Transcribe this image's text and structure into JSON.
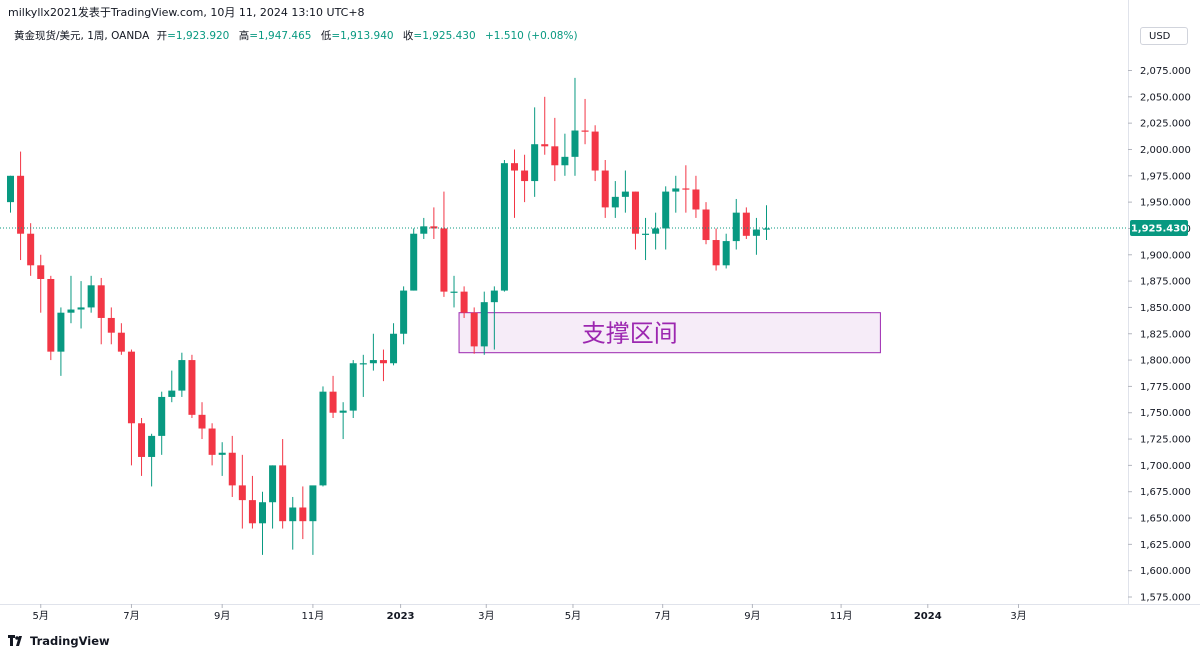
{
  "header": {
    "publish_text": "milkyllx2021发表于TradingView.com, 10月 11, 2024 13:10 UTC+8"
  },
  "legend": {
    "symbol": "黄金现货/美元, 1周, OANDA",
    "open_label": "开",
    "open_value": "=1,923.920",
    "high_label": "高",
    "high_value": "=1,947.465",
    "low_label": "低",
    "low_value": "=1,913.940",
    "close_label": "收",
    "close_value": "=1,925.430",
    "change": "+1.510 (+0.08%)"
  },
  "currency_button": "USD",
  "footer": {
    "brand": "TradingView"
  },
  "colors": {
    "up": "#089981",
    "down": "#f23645",
    "zone_border": "#9c27b0",
    "zone_fill": "#f3e5f5",
    "zone_text": "#9c27b0",
    "price_line": "#089981"
  },
  "chart_data": {
    "type": "candlestick",
    "timeframe": "1W",
    "ylim": [
      1565,
      2095
    ],
    "y_ticks": [
      1575,
      1600,
      1625,
      1650,
      1675,
      1700,
      1725,
      1750,
      1775,
      1800,
      1825,
      1850,
      1875,
      1900,
      1925,
      1950,
      1975,
      2000,
      2025,
      2050,
      2075
    ],
    "y_tick_labels": [
      "1,575.000",
      "1,600.000",
      "1,625.000",
      "1,650.000",
      "1,675.000",
      "1,700.000",
      "1,725.000",
      "1,750.000",
      "1,775.000",
      "1,800.000",
      "1,825.000",
      "1,850.000",
      "1,875.000",
      "1,900.000",
      "1,925.000",
      "1,950.000",
      "1,975.000",
      "2,000.000",
      "2,025.000",
      "2,050.000",
      "2,075.000"
    ],
    "x_ticks": [
      {
        "label": "5月",
        "week": 3
      },
      {
        "label": "7月",
        "week": 12
      },
      {
        "label": "9月",
        "week": 21
      },
      {
        "label": "11月",
        "week": 30
      },
      {
        "label": "2023",
        "week": 38.7
      },
      {
        "label": "3月",
        "week": 47.2
      },
      {
        "label": "5月",
        "week": 55.8
      },
      {
        "label": "7月",
        "week": 64.7
      },
      {
        "label": "9月",
        "week": 73.6
      },
      {
        "label": "11月",
        "week": 82.4
      },
      {
        "label": "2024",
        "week": 91
      },
      {
        "label": "3月",
        "week": 100
      }
    ],
    "last_price": 1925.43,
    "last_price_label": "1,925.430",
    "support_zone": {
      "label": "支撑区间",
      "low": 1807,
      "high": 1845,
      "week_start": 44.5,
      "week_end": 86.3
    },
    "candles": [
      {
        "o": 1950,
        "h": 1975,
        "l": 1940,
        "c": 1975
      },
      {
        "o": 1975,
        "h": 1998,
        "l": 1895,
        "c": 1920
      },
      {
        "o": 1920,
        "h": 1930,
        "l": 1880,
        "c": 1890
      },
      {
        "o": 1890,
        "h": 1900,
        "l": 1845,
        "c": 1877
      },
      {
        "o": 1877,
        "h": 1880,
        "l": 1800,
        "c": 1808
      },
      {
        "o": 1808,
        "h": 1850,
        "l": 1785,
        "c": 1845
      },
      {
        "o": 1845,
        "h": 1880,
        "l": 1835,
        "c": 1848
      },
      {
        "o": 1848,
        "h": 1875,
        "l": 1830,
        "c": 1850
      },
      {
        "o": 1850,
        "h": 1880,
        "l": 1845,
        "c": 1871
      },
      {
        "o": 1871,
        "h": 1878,
        "l": 1815,
        "c": 1840
      },
      {
        "o": 1840,
        "h": 1850,
        "l": 1815,
        "c": 1826
      },
      {
        "o": 1826,
        "h": 1835,
        "l": 1805,
        "c": 1808
      },
      {
        "o": 1808,
        "h": 1810,
        "l": 1700,
        "c": 1740
      },
      {
        "o": 1740,
        "h": 1745,
        "l": 1690,
        "c": 1708
      },
      {
        "o": 1708,
        "h": 1730,
        "l": 1680,
        "c": 1728
      },
      {
        "o": 1728,
        "h": 1770,
        "l": 1710,
        "c": 1765
      },
      {
        "o": 1765,
        "h": 1790,
        "l": 1760,
        "c": 1771
      },
      {
        "o": 1771,
        "h": 1807,
        "l": 1765,
        "c": 1800
      },
      {
        "o": 1800,
        "h": 1805,
        "l": 1745,
        "c": 1748
      },
      {
        "o": 1748,
        "h": 1760,
        "l": 1725,
        "c": 1735
      },
      {
        "o": 1735,
        "h": 1740,
        "l": 1700,
        "c": 1710
      },
      {
        "o": 1710,
        "h": 1722,
        "l": 1690,
        "c": 1712
      },
      {
        "o": 1712,
        "h": 1728,
        "l": 1670,
        "c": 1681
      },
      {
        "o": 1681,
        "h": 1710,
        "l": 1640,
        "c": 1667
      },
      {
        "o": 1667,
        "h": 1690,
        "l": 1640,
        "c": 1645
      },
      {
        "o": 1645,
        "h": 1675,
        "l": 1615,
        "c": 1665
      },
      {
        "o": 1665,
        "h": 1700,
        "l": 1640,
        "c": 1700
      },
      {
        "o": 1700,
        "h": 1725,
        "l": 1640,
        "c": 1647
      },
      {
        "o": 1647,
        "h": 1670,
        "l": 1620,
        "c": 1660
      },
      {
        "o": 1660,
        "h": 1680,
        "l": 1630,
        "c": 1647
      },
      {
        "o": 1647,
        "h": 1680,
        "l": 1615,
        "c": 1681
      },
      {
        "o": 1681,
        "h": 1775,
        "l": 1680,
        "c": 1770
      },
      {
        "o": 1770,
        "h": 1785,
        "l": 1745,
        "c": 1750
      },
      {
        "o": 1750,
        "h": 1760,
        "l": 1725,
        "c": 1752
      },
      {
        "o": 1752,
        "h": 1800,
        "l": 1745,
        "c": 1797
      },
      {
        "o": 1797,
        "h": 1805,
        "l": 1765,
        "c": 1797
      },
      {
        "o": 1797,
        "h": 1825,
        "l": 1790,
        "c": 1800
      },
      {
        "o": 1800,
        "h": 1810,
        "l": 1780,
        "c": 1797
      },
      {
        "o": 1797,
        "h": 1835,
        "l": 1795,
        "c": 1825
      },
      {
        "o": 1825,
        "h": 1870,
        "l": 1815,
        "c": 1866
      },
      {
        "o": 1866,
        "h": 1925,
        "l": 1866,
        "c": 1920
      },
      {
        "o": 1920,
        "h": 1935,
        "l": 1915,
        "c": 1927
      },
      {
        "o": 1927,
        "h": 1945,
        "l": 1915,
        "c": 1925
      },
      {
        "o": 1925,
        "h": 1960,
        "l": 1860,
        "c": 1865
      },
      {
        "o": 1865,
        "h": 1880,
        "l": 1850,
        "c": 1865
      },
      {
        "o": 1865,
        "h": 1870,
        "l": 1840,
        "c": 1845
      },
      {
        "o": 1845,
        "h": 1850,
        "l": 1806,
        "c": 1813
      },
      {
        "o": 1813,
        "h": 1865,
        "l": 1805,
        "c": 1855
      },
      {
        "o": 1855,
        "h": 1870,
        "l": 1810,
        "c": 1866
      },
      {
        "o": 1866,
        "h": 1990,
        "l": 1865,
        "c": 1987
      },
      {
        "o": 1987,
        "h": 2000,
        "l": 1935,
        "c": 1980
      },
      {
        "o": 1980,
        "h": 1995,
        "l": 1950,
        "c": 1970
      },
      {
        "o": 1970,
        "h": 2040,
        "l": 1955,
        "c": 2005
      },
      {
        "o": 2005,
        "h": 2050,
        "l": 1995,
        "c": 2003
      },
      {
        "o": 2003,
        "h": 2030,
        "l": 1970,
        "c": 1985
      },
      {
        "o": 1985,
        "h": 2015,
        "l": 1975,
        "c": 1993
      },
      {
        "o": 1993,
        "h": 2068,
        "l": 1975,
        "c": 2018
      },
      {
        "o": 2018,
        "h": 2048,
        "l": 2005,
        "c": 2017
      },
      {
        "o": 2017,
        "h": 2023,
        "l": 1970,
        "c": 1980
      },
      {
        "o": 1980,
        "h": 1990,
        "l": 1935,
        "c": 1945
      },
      {
        "o": 1945,
        "h": 1970,
        "l": 1935,
        "c": 1955
      },
      {
        "o": 1955,
        "h": 1980,
        "l": 1940,
        "c": 1960
      },
      {
        "o": 1960,
        "h": 1960,
        "l": 1905,
        "c": 1920
      },
      {
        "o": 1920,
        "h": 1935,
        "l": 1895,
        "c": 1920
      },
      {
        "o": 1920,
        "h": 1940,
        "l": 1905,
        "c": 1925
      },
      {
        "o": 1925,
        "h": 1965,
        "l": 1905,
        "c": 1960
      },
      {
        "o": 1960,
        "h": 1975,
        "l": 1940,
        "c": 1963
      },
      {
        "o": 1963,
        "h": 1985,
        "l": 1940,
        "c": 1962
      },
      {
        "o": 1962,
        "h": 1975,
        "l": 1935,
        "c": 1943
      },
      {
        "o": 1943,
        "h": 1950,
        "l": 1910,
        "c": 1914
      },
      {
        "o": 1914,
        "h": 1925,
        "l": 1885,
        "c": 1890
      },
      {
        "o": 1890,
        "h": 1920,
        "l": 1887,
        "c": 1913
      },
      {
        "o": 1913,
        "h": 1953,
        "l": 1905,
        "c": 1940
      },
      {
        "o": 1940,
        "h": 1945,
        "l": 1915,
        "c": 1918
      },
      {
        "o": 1918,
        "h": 1935,
        "l": 1900,
        "c": 1924
      },
      {
        "o": 1924,
        "h": 1947,
        "l": 1914,
        "c": 1925
      }
    ]
  }
}
